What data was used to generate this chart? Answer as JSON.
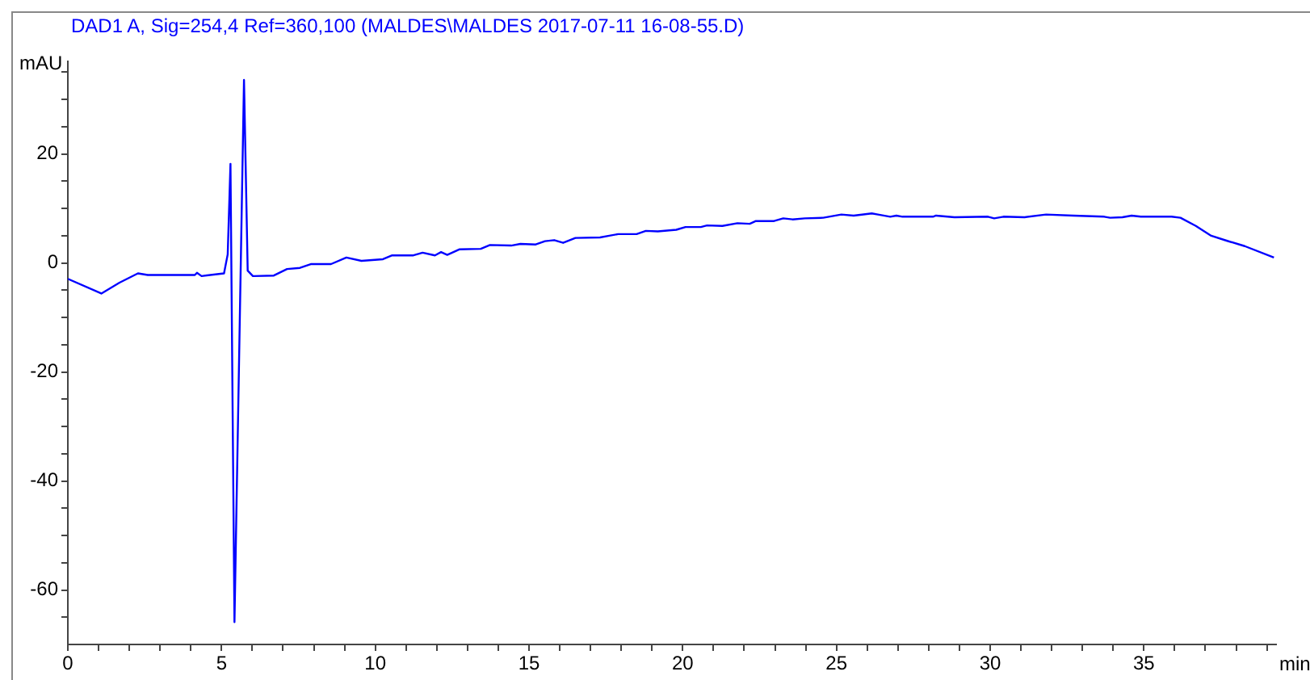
{
  "chart_data": {
    "type": "line",
    "title": "DAD1 A, Sig=254,4 Ref=360,100 (MALDES\\MALDES 2017-07-11 16-08-55.D)",
    "xlabel": "min",
    "ylabel": "mAU",
    "color": "#0000ff",
    "x": [
      0,
      1.09,
      1.68,
      2.28,
      2.6,
      4.13,
      4.2,
      4.35,
      5.08,
      5.2,
      5.29,
      5.42,
      5.73,
      5.85,
      6.02,
      6.7,
      7.13,
      7.55,
      7.9,
      8.56,
      9.06,
      9.55,
      10.25,
      10.55,
      11.24,
      11.54,
      11.94,
      12.14,
      12.34,
      12.73,
      13.43,
      13.73,
      14.42,
      14.72,
      15.22,
      15.52,
      15.82,
      16.11,
      16.51,
      17.31,
      17.61,
      17.9,
      18.5,
      18.8,
      19.19,
      19.79,
      20.09,
      20.59,
      20.79,
      21.29,
      21.78,
      22.18,
      22.38,
      22.97,
      23.27,
      23.57,
      23.97,
      24.57,
      25.16,
      25.56,
      26.15,
      26.35,
      26.75,
      26.95,
      27.15,
      28.14,
      28.24,
      28.84,
      29.93,
      30.13,
      30.43,
      31.12,
      31.82,
      32.71,
      33.71,
      33.9,
      34.3,
      34.6,
      34.9,
      35.9,
      36.19,
      36.69,
      37.19,
      37.69,
      38.28,
      39.23
    ],
    "values": [
      -2.9,
      -5.6,
      -3.6,
      -1.9,
      -2.2,
      -2.2,
      -1.8,
      -2.4,
      -1.9,
      1.6,
      18.2,
      -65.9,
      33.6,
      -1.4,
      -2.4,
      -2.3,
      -1.1,
      -0.9,
      -0.2,
      -0.2,
      1.0,
      0.4,
      0.7,
      1.4,
      1.4,
      1.9,
      1.4,
      2.0,
      1.5,
      2.5,
      2.6,
      3.3,
      3.2,
      3.5,
      3.4,
      4.0,
      4.2,
      3.7,
      4.6,
      4.7,
      5.0,
      5.3,
      5.3,
      5.9,
      5.8,
      6.1,
      6.6,
      6.6,
      6.9,
      6.8,
      7.3,
      7.2,
      7.7,
      7.7,
      8.2,
      8.0,
      8.2,
      8.3,
      8.9,
      8.7,
      9.1,
      8.9,
      8.5,
      8.7,
      8.5,
      8.5,
      8.7,
      8.4,
      8.5,
      8.2,
      8.5,
      8.4,
      8.9,
      8.7,
      8.5,
      8.3,
      8.4,
      8.7,
      8.5,
      8.5,
      8.3,
      6.8,
      5.0,
      4.1,
      3.1,
      1.0
    ],
    "xlim": [
      0,
      39.3
    ],
    "ylim": [
      -70,
      37
    ],
    "xticks": [
      0,
      {
        "value": 1,
        "label": null
      },
      {
        "value": 2,
        "label": null
      },
      {
        "value": 3,
        "label": null
      },
      {
        "value": 4,
        "label": null
      },
      5,
      {
        "value": 6,
        "label": null
      },
      {
        "value": 7,
        "label": null
      },
      {
        "value": 8,
        "label": null
      },
      {
        "value": 9,
        "label": null
      },
      10,
      {
        "value": 11,
        "label": null
      },
      {
        "value": 12,
        "label": null
      },
      {
        "value": 13,
        "label": null
      },
      {
        "value": 14,
        "label": null
      },
      15,
      {
        "value": 16,
        "label": null
      },
      {
        "value": 17,
        "label": null
      },
      {
        "value": 18,
        "label": null
      },
      {
        "value": 19,
        "label": null
      },
      20,
      {
        "value": 21,
        "label": null
      },
      {
        "value": 22,
        "label": null
      },
      {
        "value": 23,
        "label": null
      },
      {
        "value": 24,
        "label": null
      },
      25,
      {
        "value": 26,
        "label": null
      },
      {
        "value": 27,
        "label": null
      },
      {
        "value": 28,
        "label": null
      },
      {
        "value": 29,
        "label": null
      },
      30,
      {
        "value": 31,
        "label": null
      },
      {
        "value": 32,
        "label": null
      },
      {
        "value": 33,
        "label": null
      },
      {
        "value": 34,
        "label": null
      },
      35,
      {
        "value": 36,
        "label": null
      },
      {
        "value": 37,
        "label": null
      },
      {
        "value": 38,
        "label": null
      },
      {
        "value": 39,
        "label": null
      }
    ],
    "yticks": [
      {
        "value": -65,
        "label": null
      },
      -60,
      {
        "value": -55,
        "label": null
      },
      {
        "value": -50,
        "label": null
      },
      {
        "value": -45,
        "label": null
      },
      -40,
      {
        "value": -35,
        "label": null
      },
      {
        "value": -30,
        "label": null
      },
      {
        "value": -25,
        "label": null
      },
      -20,
      {
        "value": -15,
        "label": null
      },
      {
        "value": -10,
        "label": null
      },
      {
        "value": -5,
        "label": null
      },
      0,
      {
        "value": 5,
        "label": null
      },
      {
        "value": 10,
        "label": null
      },
      {
        "value": 15,
        "label": null
      },
      20,
      {
        "value": 25,
        "label": null
      },
      {
        "value": 30,
        "label": null
      },
      {
        "value": 35,
        "label": null
      }
    ]
  }
}
